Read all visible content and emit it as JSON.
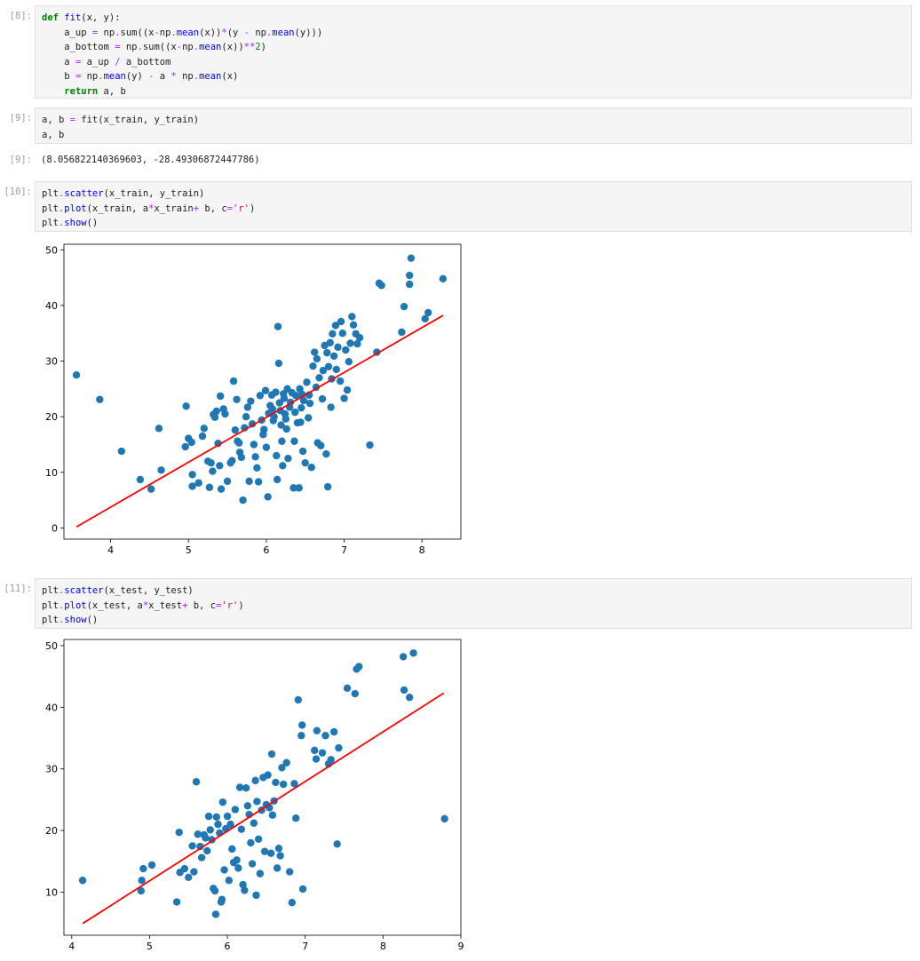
{
  "cells": [
    {
      "prompt": "[8]:",
      "code_lines": [
        "def fit(x, y):",
        "    a_up = np.sum((x-np.mean(x))*(y - np.mean(y)))",
        "    a_bottom = np.sum((x-np.mean(x))**2)",
        "    a = a_up / a_bottom",
        "    b = np.mean(y) - a * np.mean(x)",
        "    return a, b"
      ]
    },
    {
      "prompt": "[9]:",
      "code_lines": [
        "a, b = fit(x_train, y_train)",
        "a, b"
      ],
      "output_prompt": "[9]:",
      "output_text": "(8.056822140369603, -28.49306872447786)"
    },
    {
      "prompt": "[10]:",
      "code_lines": [
        "plt.scatter(x_train, y_train)",
        "plt.plot(x_train, a*x_train+ b, c='r')",
        "plt.show()"
      ]
    },
    {
      "prompt": "[11]:",
      "code_lines": [
        "plt.scatter(x_test, y_test)",
        "plt.plot(x_test, a*x_test+ b, c='r')",
        "plt.show()"
      ]
    }
  ],
  "colors": {
    "points": "#1f77b4",
    "fit_line": "#ff0000",
    "cell_bg": "#f5f5f5",
    "prompt": "#9e9e9e"
  },
  "chart_data": [
    {
      "type": "scatter",
      "xlim": [
        3.4,
        8.5
      ],
      "ylim": [
        -2,
        51
      ],
      "xticks": [
        4,
        5,
        6,
        7,
        8
      ],
      "yticks": [
        0,
        10,
        20,
        30,
        40,
        50
      ],
      "grid": false,
      "fit_line": {
        "x": [
          3.56,
          8.27
        ],
        "y": [
          0.2,
          38.2
        ]
      },
      "points": [
        [
          3.56,
          27.5
        ],
        [
          3.86,
          23.1
        ],
        [
          4.14,
          13.8
        ],
        [
          4.38,
          8.7
        ],
        [
          4.52,
          7.0
        ],
        [
          4.62,
          17.9
        ],
        [
          4.65,
          10.4
        ],
        [
          4.97,
          21.9
        ],
        [
          4.96,
          14.6
        ],
        [
          5.0,
          16.1
        ],
        [
          5.04,
          15.4
        ],
        [
          5.05,
          7.5
        ],
        [
          5.05,
          9.6
        ],
        [
          5.13,
          8.1
        ],
        [
          5.18,
          16.5
        ],
        [
          5.2,
          17.9
        ],
        [
          5.25,
          12.0
        ],
        [
          5.27,
          7.3
        ],
        [
          5.29,
          11.7
        ],
        [
          5.31,
          10.2
        ],
        [
          5.32,
          20.4
        ],
        [
          5.34,
          19.9
        ],
        [
          5.36,
          21.0
        ],
        [
          5.38,
          15.2
        ],
        [
          5.4,
          11.2
        ],
        [
          5.42,
          7.0
        ],
        [
          5.41,
          23.7
        ],
        [
          5.45,
          21.4
        ],
        [
          5.47,
          20.5
        ],
        [
          5.5,
          8.4
        ],
        [
          5.54,
          11.7
        ],
        [
          5.56,
          12.1
        ],
        [
          5.58,
          26.4
        ],
        [
          5.6,
          17.6
        ],
        [
          5.62,
          23.1
        ],
        [
          5.63,
          15.6
        ],
        [
          5.65,
          15.3
        ],
        [
          5.66,
          13.6
        ],
        [
          5.68,
          12.7
        ],
        [
          5.7,
          5.0
        ],
        [
          5.72,
          18.0
        ],
        [
          5.74,
          20.0
        ],
        [
          5.76,
          21.7
        ],
        [
          5.78,
          8.4
        ],
        [
          5.8,
          22.8
        ],
        [
          5.82,
          18.7
        ],
        [
          5.84,
          15.0
        ],
        [
          5.86,
          12.8
        ],
        [
          5.88,
          10.8
        ],
        [
          5.9,
          8.3
        ],
        [
          5.92,
          23.8
        ],
        [
          5.94,
          19.4
        ],
        [
          5.96,
          16.8
        ],
        [
          5.97,
          17.7
        ],
        [
          5.99,
          24.7
        ],
        [
          6.0,
          14.5
        ],
        [
          6.02,
          5.6
        ],
        [
          6.03,
          20.6
        ],
        [
          6.05,
          22.0
        ],
        [
          6.07,
          23.9
        ],
        [
          6.08,
          21.4
        ],
        [
          6.09,
          19.3
        ],
        [
          6.1,
          20.0
        ],
        [
          6.12,
          24.4
        ],
        [
          6.13,
          13.0
        ],
        [
          6.14,
          8.7
        ],
        [
          6.15,
          36.2
        ],
        [
          6.16,
          29.6
        ],
        [
          6.17,
          22.5
        ],
        [
          6.18,
          21.1
        ],
        [
          6.19,
          18.5
        ],
        [
          6.2,
          15.6
        ],
        [
          6.21,
          11.2
        ],
        [
          6.22,
          24.1
        ],
        [
          6.23,
          23.3
        ],
        [
          6.24,
          20.5
        ],
        [
          6.25,
          19.6
        ],
        [
          6.26,
          17.8
        ],
        [
          6.27,
          25.0
        ],
        [
          6.28,
          12.5
        ],
        [
          6.3,
          21.7
        ],
        [
          6.31,
          22.6
        ],
        [
          6.33,
          24.3
        ],
        [
          6.35,
          7.2
        ],
        [
          6.36,
          15.6
        ],
        [
          6.37,
          20.8
        ],
        [
          6.38,
          23.8
        ],
        [
          6.4,
          18.9
        ],
        [
          6.42,
          7.2
        ],
        [
          6.43,
          25.0
        ],
        [
          6.44,
          19.0
        ],
        [
          6.45,
          21.6
        ],
        [
          6.46,
          24.0
        ],
        [
          6.47,
          13.8
        ],
        [
          6.48,
          22.9
        ],
        [
          6.5,
          11.7
        ],
        [
          6.52,
          26.2
        ],
        [
          6.54,
          19.8
        ],
        [
          6.55,
          23.9
        ],
        [
          6.56,
          22.4
        ],
        [
          6.58,
          10.9
        ],
        [
          6.6,
          29.1
        ],
        [
          6.62,
          31.6
        ],
        [
          6.64,
          25.3
        ],
        [
          6.65,
          30.4
        ],
        [
          6.66,
          15.3
        ],
        [
          6.68,
          27.0
        ],
        [
          6.7,
          14.8
        ],
        [
          6.72,
          23.2
        ],
        [
          6.73,
          28.3
        ],
        [
          6.75,
          32.8
        ],
        [
          6.77,
          13.3
        ],
        [
          6.78,
          31.5
        ],
        [
          6.79,
          7.4
        ],
        [
          6.8,
          29.0
        ],
        [
          6.82,
          33.3
        ],
        [
          6.83,
          21.7
        ],
        [
          6.84,
          26.8
        ],
        [
          6.85,
          34.9
        ],
        [
          6.87,
          30.9
        ],
        [
          6.89,
          36.4
        ],
        [
          6.9,
          28.5
        ],
        [
          6.92,
          32.5
        ],
        [
          6.95,
          26.4
        ],
        [
          6.96,
          37.1
        ],
        [
          6.98,
          35.0
        ],
        [
          7.0,
          23.3
        ],
        [
          7.02,
          32.0
        ],
        [
          7.04,
          24.8
        ],
        [
          7.06,
          29.9
        ],
        [
          7.08,
          33.2
        ],
        [
          7.1,
          38.0
        ],
        [
          7.12,
          36.5
        ],
        [
          7.15,
          34.9
        ],
        [
          7.17,
          33.1
        ],
        [
          7.2,
          34.2
        ],
        [
          7.33,
          14.9
        ],
        [
          7.42,
          31.6
        ],
        [
          7.45,
          44.0
        ],
        [
          7.48,
          43.6
        ],
        [
          7.74,
          35.2
        ],
        [
          7.77,
          39.8
        ],
        [
          7.84,
          45.4
        ],
        [
          7.84,
          43.8
        ],
        [
          7.86,
          48.5
        ],
        [
          8.04,
          37.6
        ],
        [
          8.08,
          38.7
        ],
        [
          8.27,
          44.8
        ]
      ]
    },
    {
      "type": "scatter",
      "xlim": [
        3.9,
        9.0
      ],
      "ylim": [
        3.0,
        51.0
      ],
      "xticks": [
        4,
        5,
        6,
        7,
        8,
        9
      ],
      "yticks": [
        10,
        20,
        30,
        40,
        50
      ],
      "grid": false,
      "fit_line": {
        "x": [
          4.14,
          8.78
        ],
        "y": [
          4.9,
          42.3
        ]
      },
      "points": [
        [
          4.14,
          11.9
        ],
        [
          4.89,
          10.2
        ],
        [
          4.9,
          11.9
        ],
        [
          4.92,
          13.8
        ],
        [
          5.03,
          14.4
        ],
        [
          5.35,
          8.4
        ],
        [
          5.38,
          19.7
        ],
        [
          5.39,
          13.2
        ],
        [
          5.45,
          13.8
        ],
        [
          5.5,
          12.4
        ],
        [
          5.55,
          17.5
        ],
        [
          5.57,
          13.3
        ],
        [
          5.6,
          27.9
        ],
        [
          5.62,
          19.4
        ],
        [
          5.65,
          17.4
        ],
        [
          5.67,
          15.6
        ],
        [
          5.7,
          19.3
        ],
        [
          5.72,
          18.8
        ],
        [
          5.74,
          16.7
        ],
        [
          5.76,
          22.3
        ],
        [
          5.78,
          20.1
        ],
        [
          5.8,
          18.5
        ],
        [
          5.82,
          10.6
        ],
        [
          5.84,
          10.2
        ],
        [
          5.85,
          6.4
        ],
        [
          5.86,
          22.2
        ],
        [
          5.88,
          21.0
        ],
        [
          5.9,
          19.6
        ],
        [
          5.92,
          8.4
        ],
        [
          5.93,
          8.8
        ],
        [
          5.94,
          24.6
        ],
        [
          5.96,
          13.6
        ],
        [
          5.98,
          20.3
        ],
        [
          6.0,
          22.3
        ],
        [
          6.02,
          11.9
        ],
        [
          6.04,
          21.0
        ],
        [
          6.06,
          17.0
        ],
        [
          6.08,
          14.8
        ],
        [
          6.1,
          23.4
        ],
        [
          6.12,
          15.2
        ],
        [
          6.14,
          13.9
        ],
        [
          6.16,
          27.0
        ],
        [
          6.18,
          20.2
        ],
        [
          6.2,
          11.2
        ],
        [
          6.22,
          10.3
        ],
        [
          6.24,
          26.9
        ],
        [
          6.26,
          24.0
        ],
        [
          6.28,
          22.6
        ],
        [
          6.3,
          18.0
        ],
        [
          6.32,
          14.6
        ],
        [
          6.34,
          21.2
        ],
        [
          6.36,
          28.1
        ],
        [
          6.37,
          9.5
        ],
        [
          6.38,
          24.7
        ],
        [
          6.4,
          18.6
        ],
        [
          6.42,
          13.0
        ],
        [
          6.44,
          23.3
        ],
        [
          6.46,
          28.6
        ],
        [
          6.48,
          16.6
        ],
        [
          6.5,
          24.2
        ],
        [
          6.52,
          29.0
        ],
        [
          6.54,
          23.7
        ],
        [
          6.56,
          16.3
        ],
        [
          6.57,
          32.4
        ],
        [
          6.58,
          22.5
        ],
        [
          6.6,
          24.8
        ],
        [
          6.62,
          27.8
        ],
        [
          6.64,
          13.9
        ],
        [
          6.66,
          17.1
        ],
        [
          6.68,
          15.9
        ],
        [
          6.7,
          30.2
        ],
        [
          6.72,
          27.5
        ],
        [
          6.76,
          31.0
        ],
        [
          6.8,
          13.3
        ],
        [
          6.83,
          8.3
        ],
        [
          6.86,
          27.6
        ],
        [
          6.88,
          22.0
        ],
        [
          6.91,
          41.2
        ],
        [
          6.95,
          35.4
        ],
        [
          6.96,
          37.1
        ],
        [
          6.97,
          10.5
        ],
        [
          7.12,
          33.0
        ],
        [
          7.14,
          31.6
        ],
        [
          7.15,
          36.2
        ],
        [
          7.22,
          32.6
        ],
        [
          7.26,
          35.4
        ],
        [
          7.3,
          30.8
        ],
        [
          7.33,
          31.5
        ],
        [
          7.37,
          36.0
        ],
        [
          7.41,
          17.8
        ],
        [
          7.43,
          33.4
        ],
        [
          7.54,
          43.1
        ],
        [
          7.64,
          42.2
        ],
        [
          7.66,
          46.2
        ],
        [
          7.69,
          46.6
        ],
        [
          8.26,
          48.2
        ],
        [
          8.27,
          42.8
        ],
        [
          8.34,
          41.6
        ],
        [
          8.39,
          48.8
        ],
        [
          8.79,
          21.9
        ]
      ]
    }
  ]
}
